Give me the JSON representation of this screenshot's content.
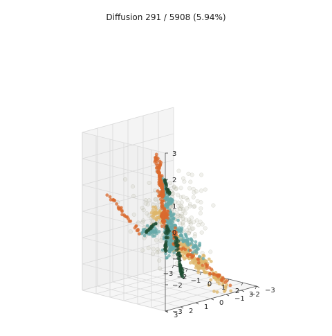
{
  "chart_data": {
    "type": "scatter",
    "subtype": "3d-scatter",
    "title": "Diffusion 291 / 5908 (5.94%)",
    "xlabel": "",
    "ylabel": "",
    "zlabel": "",
    "xlim": [
      -3,
      3
    ],
    "ylim": [
      -3,
      3
    ],
    "zlim": [
      -3,
      3
    ],
    "x_ticks": [
      -3,
      -2,
      -1,
      0,
      1,
      2,
      3
    ],
    "y_ticks": [
      -3,
      -2,
      -1,
      0,
      1,
      2,
      3
    ],
    "z_ticks": [
      -3,
      -2,
      -1,
      0,
      1,
      2,
      3
    ],
    "grid": true,
    "legend": "none",
    "point_total": 5908,
    "step": 291,
    "percent_label": "5.94%",
    "colors": {
      "background_points": "#c9c9b8",
      "teal": "#67a9a9",
      "orange": "#d9692e",
      "sand": "#ddb56a",
      "dark_green": "#1f4d33",
      "pane_left": "#f4f4f4",
      "pane_right": "#f0f0f0",
      "pane_floor": "#f6f6f6",
      "grid": "#d9d9d9"
    },
    "series": [
      {
        "color_key": "orange",
        "arms": [
          {
            "from": [
              0.0,
              0.3,
              -0.6
            ],
            "to": [
              0.6,
              1.3,
              2.2
            ],
            "count": 90,
            "spread": 0.08
          },
          {
            "from": [
              -0.8,
              1.1,
              -0.9
            ],
            "to": [
              -2.0,
              2.3,
              0.7
            ],
            "count": 30,
            "spread": 0.06
          },
          {
            "from": [
              0.2,
              0.6,
              0.7
            ],
            "to": [
              1.6,
              2.4,
              2.7
            ],
            "count": 40,
            "spread": 0.06
          },
          {
            "from": [
              0.2,
              0.0,
              -1.2
            ],
            "to": [
              2.8,
              -1.6,
              -2.8
            ],
            "count": 45,
            "spread": 0.1
          },
          {
            "from": [
              -0.4,
              -0.2,
              -0.3
            ],
            "to": [
              -1.6,
              -1.0,
              -0.6
            ],
            "count": 30,
            "spread": 0.1
          },
          {
            "from": [
              1.0,
              0.5,
              -0.6
            ],
            "to": [
              2.0,
              1.5,
              -0.6
            ],
            "count": 20,
            "spread": 0.07
          }
        ]
      },
      {
        "color_key": "teal",
        "arms": [
          {
            "from": [
              0.2,
              0.1,
              -0.2
            ],
            "to": [
              0.6,
              0.5,
              -1.4
            ],
            "count": 150,
            "spread": 0.22
          },
          {
            "from": [
              0.2,
              0.4,
              0.2
            ],
            "to": [
              1.7,
              1.4,
              0.8
            ],
            "count": 45,
            "spread": 0.06
          },
          {
            "from": [
              0.1,
              0.3,
              0.4
            ],
            "to": [
              0.4,
              0.9,
              1.4
            ],
            "count": 50,
            "spread": 0.09
          },
          {
            "from": [
              -0.4,
              0.4,
              -0.8
            ],
            "to": [
              -1.2,
              0.6,
              -0.9
            ],
            "count": 40,
            "spread": 0.12
          },
          {
            "from": [
              0.5,
              0.0,
              -0.8
            ],
            "to": [
              1.6,
              -0.6,
              -1.5
            ],
            "count": 60,
            "spread": 0.15
          }
        ]
      },
      {
        "color_key": "sand",
        "arms": [
          {
            "from": [
              0.4,
              0.1,
              -1.0
            ],
            "to": [
              2.8,
              -1.2,
              -2.8
            ],
            "count": 140,
            "spread": 0.22
          },
          {
            "from": [
              -0.6,
              -0.3,
              -0.5
            ],
            "to": [
              -1.9,
              -0.6,
              -0.5
            ],
            "count": 45,
            "spread": 0.18
          },
          {
            "from": [
              0.4,
              -0.3,
              -1.4
            ],
            "to": [
              1.3,
              -1.0,
              -2.2
            ],
            "count": 45,
            "spread": 0.2
          }
        ]
      },
      {
        "color_key": "dark_green",
        "arms": [
          {
            "from": [
              -0.2,
              -0.6,
              -1.2
            ],
            "to": [
              -0.4,
              -1.2,
              -2.8
            ],
            "count": 55,
            "spread": 0.05
          },
          {
            "from": [
              0.1,
              0.2,
              -0.6
            ],
            "to": [
              0.3,
              0.6,
              -1.6
            ],
            "count": 30,
            "spread": 0.05
          },
          {
            "from": [
              0.2,
              0.2,
              0.6
            ],
            "to": [
              0.2,
              0.5,
              1.2
            ],
            "count": 20,
            "spread": 0.04
          },
          {
            "from": [
              -0.6,
              0.3,
              -0.6
            ],
            "to": [
              -1.1,
              0.6,
              -0.9
            ],
            "count": 15,
            "spread": 0.05
          }
        ]
      },
      {
        "color_key": "background_points",
        "cloud": {
          "center": [
            0.2,
            0.1,
            -0.4
          ],
          "sd": [
            1.3,
            1.2,
            1.1
          ],
          "count": 260
        }
      }
    ]
  }
}
